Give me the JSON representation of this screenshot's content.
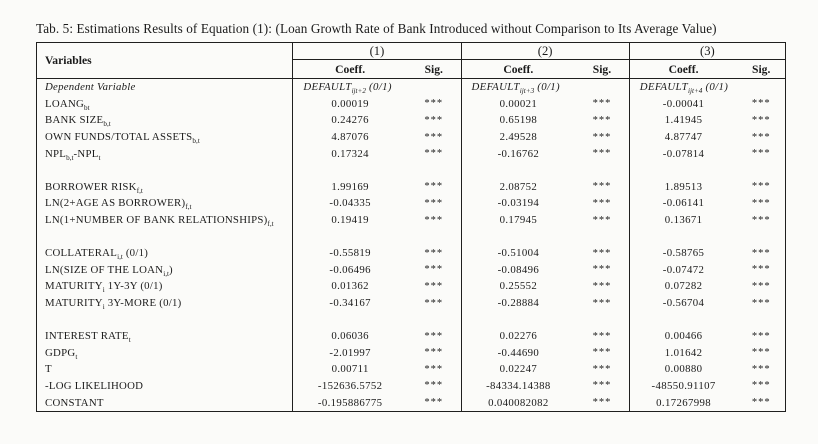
{
  "caption": "Tab. 5: Estimations Results of Equation (1): (Loan Growth Rate of Bank Introduced without Comparison to Its Average Value)",
  "table": {
    "header": {
      "variables_label": "Variables",
      "groups": [
        {
          "label": "(1)"
        },
        {
          "label": "(2)"
        },
        {
          "label": "(3)"
        }
      ],
      "subheaders": {
        "coeff": "Coeff.",
        "sig": "Sig."
      }
    },
    "rows": [
      {
        "variable": "Dependent Variable",
        "italic": true,
        "cells": [
          {
            "coeff": "DEFAULT_{ijt+2} (0/1)",
            "sig": ""
          },
          {
            "coeff": "DEFAULT_{ijt+3} (0/1)",
            "sig": ""
          },
          {
            "coeff": "DEFAULT_{ijt+4} (0/1)",
            "sig": ""
          }
        ]
      },
      {
        "variable": "LOANG_{bt}",
        "cells": [
          {
            "coeff": "0.00019",
            "sig": "***"
          },
          {
            "coeff": "0.00021",
            "sig": "***"
          },
          {
            "coeff": "-0.00041",
            "sig": "***"
          }
        ]
      },
      {
        "variable": "BANK SIZE_{b,t}",
        "cells": [
          {
            "coeff": "0.24276",
            "sig": "***"
          },
          {
            "coeff": "0.65198",
            "sig": "***"
          },
          {
            "coeff": "1.41945",
            "sig": "***"
          }
        ]
      },
      {
        "variable": "OWN FUNDS/TOTAL ASSETS_{b,t}",
        "cells": [
          {
            "coeff": "4.87076",
            "sig": "***"
          },
          {
            "coeff": "2.49528",
            "sig": "***"
          },
          {
            "coeff": "4.87747",
            "sig": "***"
          }
        ]
      },
      {
        "variable": "NPL_{b,t}-NPL_{t}",
        "cells": [
          {
            "coeff": "0.17324",
            "sig": "***"
          },
          {
            "coeff": "-0.16762",
            "sig": "***"
          },
          {
            "coeff": "-0.07814",
            "sig": "***"
          }
        ]
      },
      {
        "blank": true
      },
      {
        "variable": "BORROWER RISK_{f,t}",
        "cells": [
          {
            "coeff": "1.99169",
            "sig": "***"
          },
          {
            "coeff": "2.08752",
            "sig": "***"
          },
          {
            "coeff": "1.89513",
            "sig": "***"
          }
        ]
      },
      {
        "variable": "LN(2+AGE AS BORROWER)_{f,t}",
        "cells": [
          {
            "coeff": "-0.04335",
            "sig": "***"
          },
          {
            "coeff": "-0.03194",
            "sig": "***"
          },
          {
            "coeff": "-0.06141",
            "sig": "***"
          }
        ]
      },
      {
        "variable": "LN(1+NUMBER OF BANK RELATIONSHIPS)_{f,t}",
        "cells": [
          {
            "coeff": "0.19419",
            "sig": "***"
          },
          {
            "coeff": "0.17945",
            "sig": "***"
          },
          {
            "coeff": "0.13671",
            "sig": "***"
          }
        ]
      },
      {
        "blank": true
      },
      {
        "variable": "COLLATERAL_{i,t} (0/1)",
        "cells": [
          {
            "coeff": "-0.55819",
            "sig": "***"
          },
          {
            "coeff": "-0.51004",
            "sig": "***"
          },
          {
            "coeff": "-0.58765",
            "sig": "***"
          }
        ]
      },
      {
        "variable": "LN(SIZE OF THE LOAN_{i,t})",
        "cells": [
          {
            "coeff": "-0.06496",
            "sig": "***"
          },
          {
            "coeff": "-0.08496",
            "sig": "***"
          },
          {
            "coeff": "-0.07472",
            "sig": "***"
          }
        ]
      },
      {
        "variable": "MATURITY_{i} 1Y-3Y (0/1)",
        "cells": [
          {
            "coeff": "0.01362",
            "sig": "***"
          },
          {
            "coeff": "0.25552",
            "sig": "***"
          },
          {
            "coeff": "0.07282",
            "sig": "***"
          }
        ]
      },
      {
        "variable": "MATURITY_{i} 3Y-MORE (0/1)",
        "cells": [
          {
            "coeff": "-0.34167",
            "sig": "***"
          },
          {
            "coeff": "-0.28884",
            "sig": "***"
          },
          {
            "coeff": "-0.56704",
            "sig": "***"
          }
        ]
      },
      {
        "blank": true
      },
      {
        "variable": "INTEREST RATE_{t}",
        "cells": [
          {
            "coeff": "0.06036",
            "sig": "***"
          },
          {
            "coeff": "0.02276",
            "sig": "***"
          },
          {
            "coeff": "0.00466",
            "sig": "***"
          }
        ]
      },
      {
        "variable": "GDPG_{t}",
        "cells": [
          {
            "coeff": "-2.01997",
            "sig": "***"
          },
          {
            "coeff": "-0.44690",
            "sig": "***"
          },
          {
            "coeff": "1.01642",
            "sig": "***"
          }
        ]
      },
      {
        "variable": "T",
        "cells": [
          {
            "coeff": "0.00711",
            "sig": "***"
          },
          {
            "coeff": "0.02247",
            "sig": "***"
          },
          {
            "coeff": "0.00880",
            "sig": "***"
          }
        ]
      },
      {
        "variable": "-LOG LIKELIHOOD",
        "cells": [
          {
            "coeff": "-152636.5752",
            "sig": "***"
          },
          {
            "coeff": "-84334.14388",
            "sig": "***"
          },
          {
            "coeff": "-48550.91107",
            "sig": "***"
          }
        ]
      },
      {
        "variable": "CONSTANT",
        "cells": [
          {
            "coeff": "-0.195886775",
            "sig": "***"
          },
          {
            "coeff": "0.040082082",
            "sig": "***"
          },
          {
            "coeff": "0.17267998",
            "sig": "***"
          }
        ]
      }
    ]
  }
}
